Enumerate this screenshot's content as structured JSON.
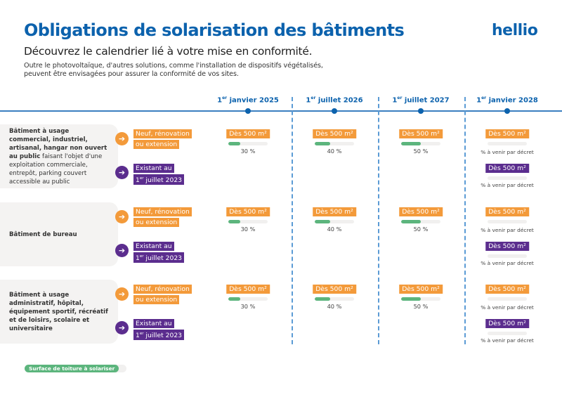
{
  "header": {
    "title": "Obligations de solarisation des bâtiments",
    "logo": "hellio",
    "subtitle": "Découvrez le calendrier lié à votre mise en conformité.",
    "intro_line1": "Outre le photovoltaïque, d'autres solutions, comme l'installation de dispositifs végétalisés,",
    "intro_line2": "peuvent être envisagées pour assurer la conformité de vos sites."
  },
  "colors": {
    "blue": "#0c62ad",
    "orange": "#f39a3a",
    "purple": "#5b2d8e",
    "green": "#5cb57d"
  },
  "timeline": [
    {
      "sup": "er",
      "label": "1er janvier 2025",
      "rest": " janvier 2025"
    },
    {
      "sup": "er",
      "label": "1er juillet 2026",
      "rest": " juillet 2026"
    },
    {
      "sup": "er",
      "label": "1er juillet 2027",
      "rest": " juillet 2027"
    },
    {
      "sup": "er",
      "label": "1er janvier 2028",
      "rest": " janvier 2028"
    }
  ],
  "categories": {
    "new_line1": "Neuf, rénovation",
    "new_line2": "ou extension",
    "existing_line1": "Existant au",
    "existing_line2_sup": "er",
    "existing_line2_rest": " juillet 2023",
    "arrow_icon": "arrow-right-icon"
  },
  "threshold_label": "Dès 500 m²",
  "pending_label": "% à venir par décret",
  "rows": [
    {
      "bold": "Bâtiment à usage commercial, industriel, artisanal, hangar non ouvert au public",
      "normal": " faisant l'objet d'une exploitation commerciale, entrepôt, parking couvert accessible au public",
      "new": [
        30,
        40,
        50,
        null
      ],
      "new_labels": [
        "30 %",
        "40 %",
        "50 %",
        ""
      ],
      "existing_2028": true
    },
    {
      "bold": "Bâtiment de bureau",
      "normal": "",
      "new": [
        30,
        40,
        50,
        null
      ],
      "new_labels": [
        "30 %",
        "40 %",
        "50 %",
        ""
      ],
      "existing_2028": true
    },
    {
      "bold": "Bâtiment à usage administratif, hôpital, équipement sportif, récréatif et de loisirs, scolaire et universitaire",
      "normal": "",
      "new": [
        30,
        40,
        50,
        null
      ],
      "new_labels": [
        "30 %",
        "40 %",
        "50 %",
        ""
      ],
      "existing_2028": true
    }
  ],
  "legend": {
    "label": "Surface de toiture à solariser"
  }
}
